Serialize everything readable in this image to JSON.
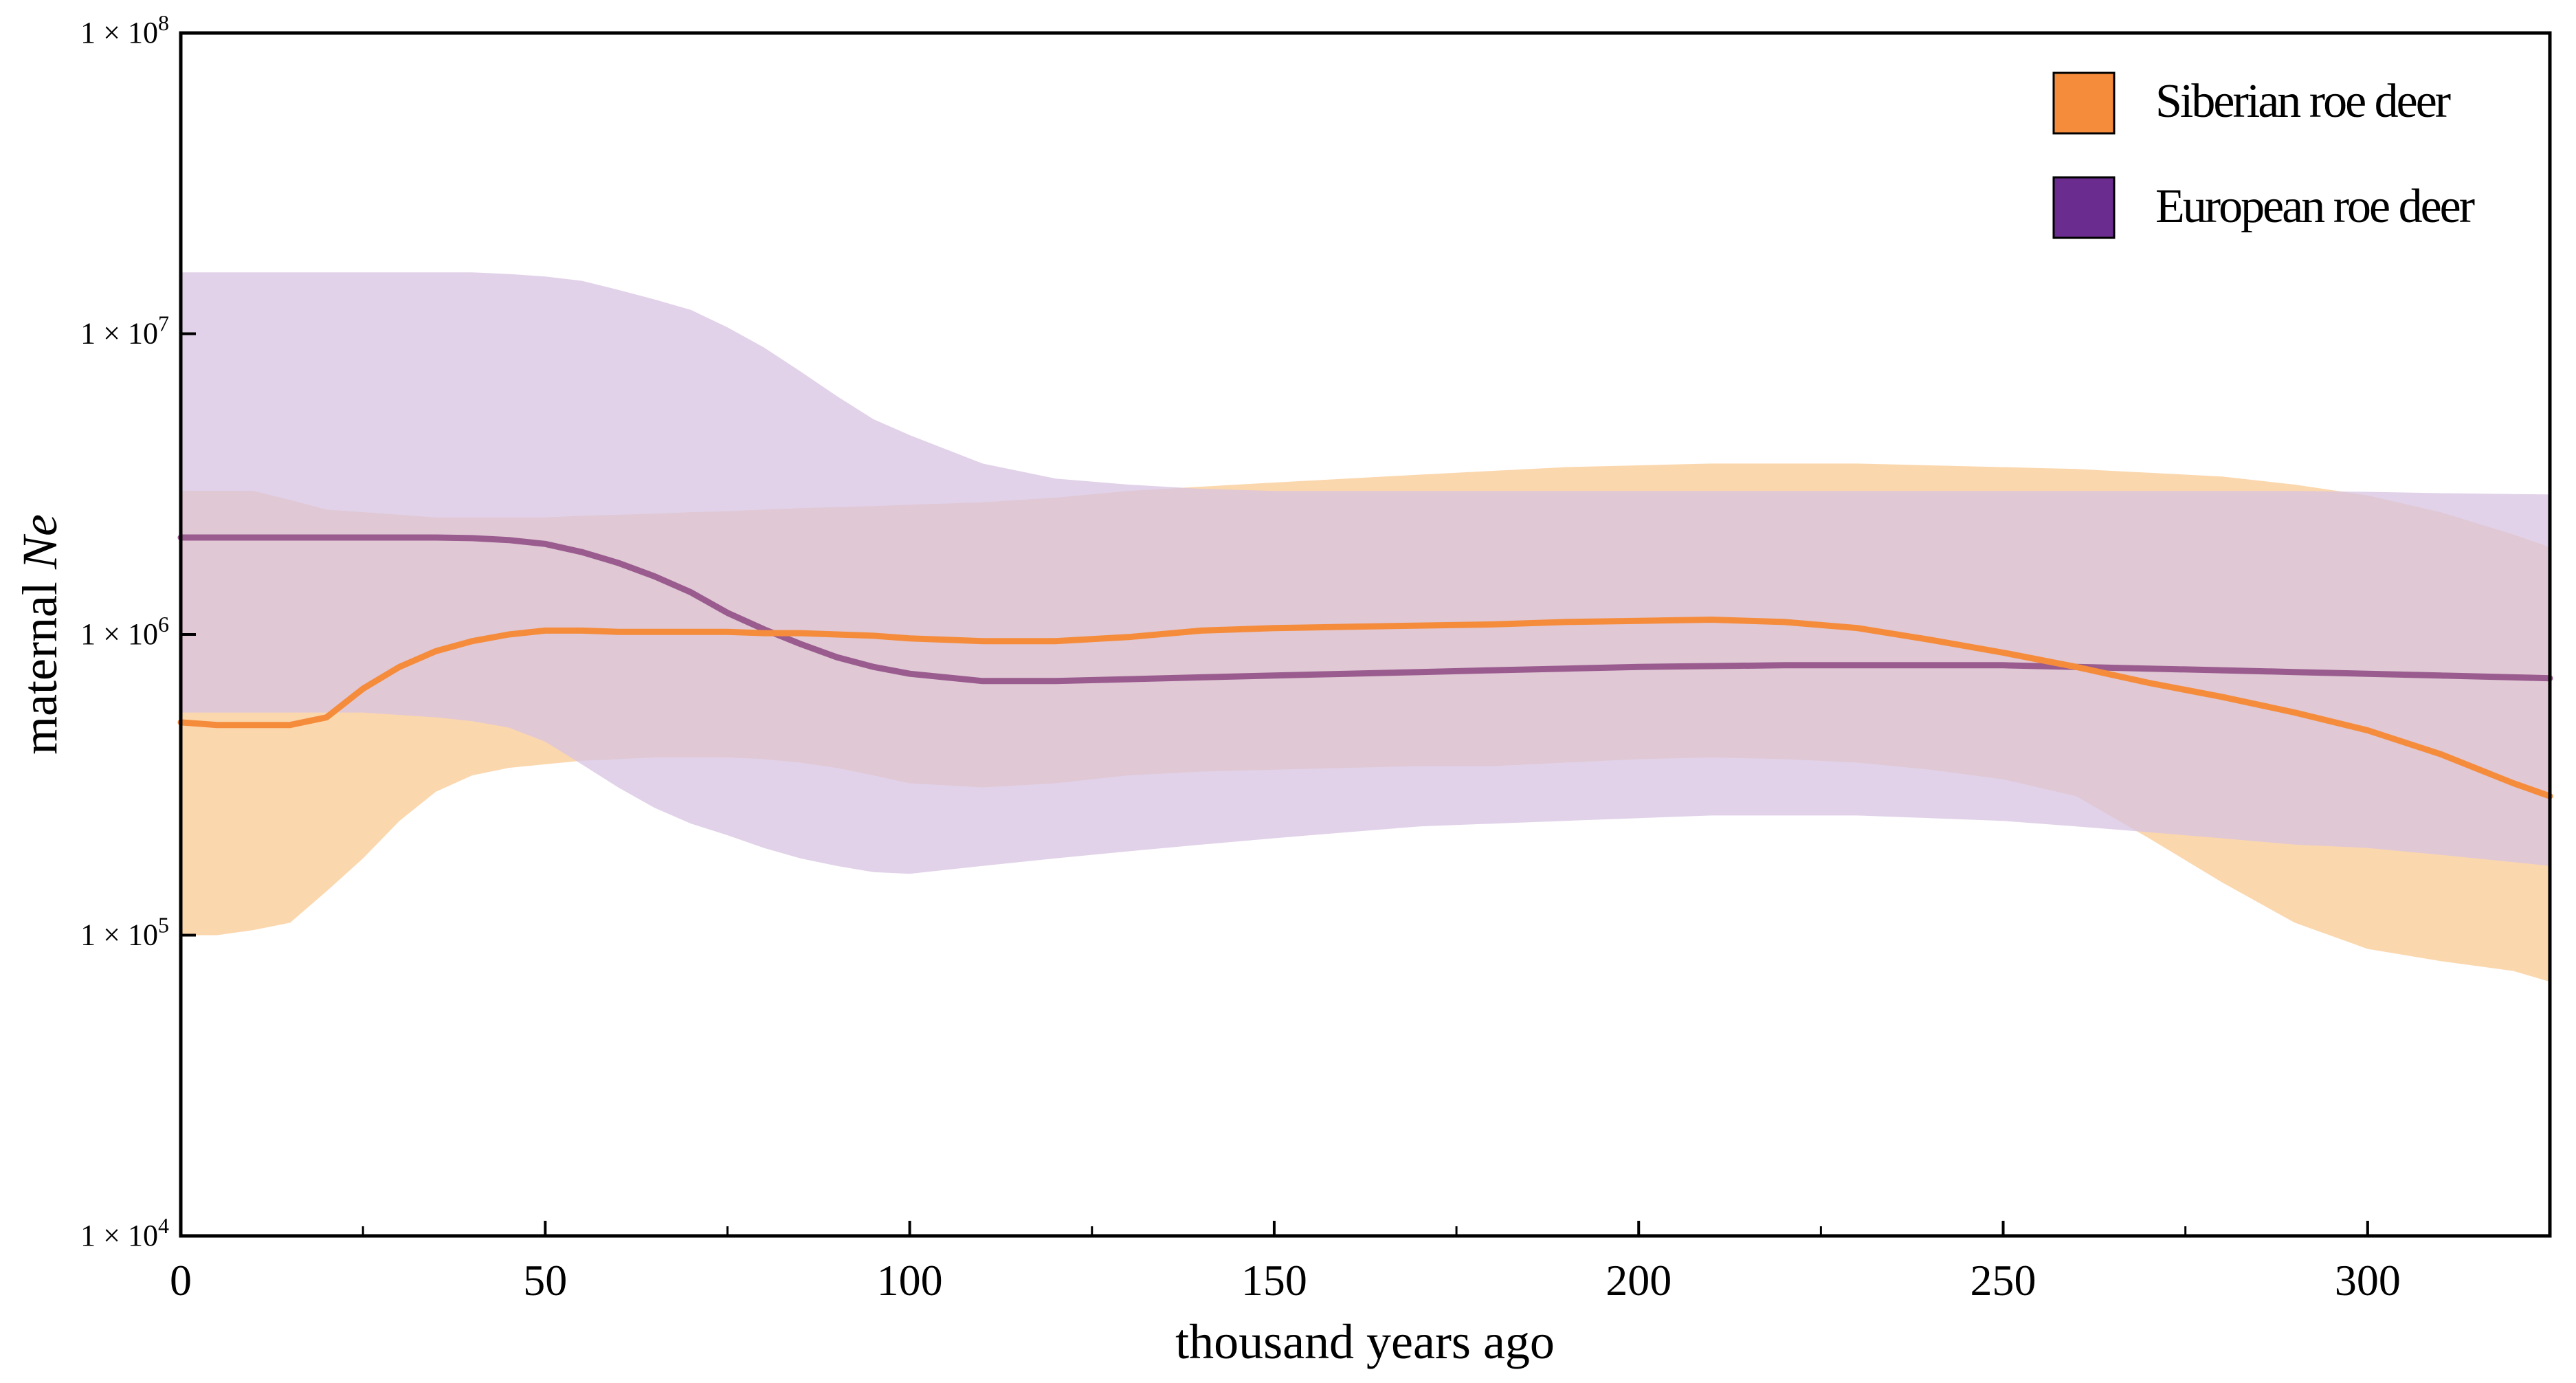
{
  "chart_data": {
    "type": "area",
    "xlabel": "thousand years ago",
    "ylabel_prefix": "maternal ",
    "ylabel_italic": "Ne",
    "yscale": "log",
    "xlim": [
      0,
      325
    ],
    "ylim": [
      10000,
      100000000
    ],
    "x_ticks": [
      0,
      50,
      100,
      150,
      200,
      250,
      300
    ],
    "x_tick_labels": [
      "0",
      "50",
      "100",
      "150",
      "200",
      "250",
      "300"
    ],
    "y_ticks": [
      10000,
      100000,
      1000000,
      10000000,
      100000000
    ],
    "y_tick_labels": [
      {
        "base": "1 × 10",
        "exp": "4"
      },
      {
        "base": "1 × 10",
        "exp": "5"
      },
      {
        "base": "1 × 10",
        "exp": "6"
      },
      {
        "base": "1 × 10",
        "exp": "7"
      },
      {
        "base": "1 × 10",
        "exp": "8"
      }
    ],
    "legend_position": "top-right",
    "series": [
      {
        "name": "Siberian roe deer",
        "color": "#F58C3C",
        "band_color": "#FAD0A0",
        "x": [
          0,
          5,
          10,
          15,
          20,
          25,
          30,
          35,
          40,
          45,
          50,
          55,
          60,
          65,
          70,
          75,
          80,
          85,
          90,
          95,
          100,
          110,
          120,
          130,
          140,
          150,
          160,
          170,
          180,
          190,
          200,
          210,
          220,
          230,
          240,
          250,
          260,
          270,
          280,
          290,
          300,
          310,
          320,
          325
        ],
        "median": [
          510000,
          500000,
          500000,
          500000,
          530000,
          660000,
          780000,
          880000,
          950000,
          1000000,
          1030000,
          1030000,
          1020000,
          1020000,
          1020000,
          1020000,
          1010000,
          1010000,
          1000000,
          990000,
          970000,
          950000,
          950000,
          980000,
          1030000,
          1050000,
          1060000,
          1070000,
          1080000,
          1100000,
          1110000,
          1120000,
          1100000,
          1050000,
          960000,
          870000,
          780000,
          690000,
          620000,
          550000,
          480000,
          400000,
          320000,
          290000
        ],
        "lower": [
          100000,
          100000,
          104000,
          110000,
          140000,
          180000,
          240000,
          300000,
          340000,
          360000,
          370000,
          380000,
          385000,
          390000,
          390000,
          390000,
          385000,
          375000,
          360000,
          340000,
          320000,
          310000,
          320000,
          340000,
          350000,
          355000,
          360000,
          365000,
          365000,
          375000,
          385000,
          390000,
          385000,
          375000,
          355000,
          330000,
          290000,
          210000,
          150000,
          110000,
          90000,
          82000,
          76000,
          70000
        ],
        "upper": [
          3000000,
          3000000,
          3000000,
          2800000,
          2600000,
          2550000,
          2500000,
          2450000,
          2450000,
          2450000,
          2450000,
          2480000,
          2500000,
          2520000,
          2550000,
          2570000,
          2600000,
          2630000,
          2650000,
          2670000,
          2700000,
          2750000,
          2850000,
          3000000,
          3100000,
          3200000,
          3300000,
          3400000,
          3500000,
          3600000,
          3650000,
          3700000,
          3700000,
          3700000,
          3650000,
          3600000,
          3550000,
          3450000,
          3350000,
          3150000,
          2900000,
          2550000,
          2150000,
          1950000
        ]
      },
      {
        "name": "European roe deer",
        "color": "#6A2C8F",
        "band_color": "#D7C3E1",
        "x": [
          0,
          5,
          10,
          15,
          20,
          25,
          30,
          35,
          40,
          45,
          50,
          55,
          60,
          65,
          70,
          75,
          80,
          85,
          90,
          95,
          100,
          110,
          120,
          130,
          140,
          150,
          160,
          170,
          180,
          190,
          200,
          210,
          220,
          230,
          240,
          250,
          260,
          270,
          280,
          290,
          300,
          310,
          320,
          325
        ],
        "median": [
          2100000,
          2100000,
          2100000,
          2100000,
          2100000,
          2100000,
          2100000,
          2100000,
          2090000,
          2060000,
          2000000,
          1880000,
          1730000,
          1560000,
          1380000,
          1180000,
          1040000,
          930000,
          840000,
          780000,
          740000,
          700000,
          700000,
          710000,
          720000,
          730000,
          740000,
          750000,
          760000,
          770000,
          780000,
          785000,
          790000,
          790000,
          790000,
          790000,
          780000,
          770000,
          760000,
          750000,
          740000,
          730000,
          720000,
          715000
        ],
        "lower": [
          550000,
          550000,
          550000,
          550000,
          550000,
          550000,
          540000,
          530000,
          515000,
          490000,
          440000,
          370000,
          310000,
          265000,
          235000,
          215000,
          195000,
          180000,
          170000,
          162000,
          160000,
          170000,
          180000,
          190000,
          200000,
          210000,
          220000,
          230000,
          235000,
          240000,
          245000,
          250000,
          250000,
          250000,
          245000,
          240000,
          230000,
          220000,
          210000,
          200000,
          195000,
          185000,
          175000,
          170000
        ],
        "upper": [
          16000000,
          16000000,
          16000000,
          16000000,
          16000000,
          16000000,
          16000000,
          16000000,
          16000000,
          15800000,
          15500000,
          15000000,
          14000000,
          13000000,
          12000000,
          10500000,
          9000000,
          7500000,
          6200000,
          5200000,
          4600000,
          3700000,
          3300000,
          3150000,
          3050000,
          3000000,
          3000000,
          3000000,
          3000000,
          3000000,
          3000000,
          3000000,
          3000000,
          3000000,
          3000000,
          3000000,
          3000000,
          3000000,
          3000000,
          3000000,
          2980000,
          2950000,
          2930000,
          2920000
        ]
      }
    ]
  }
}
